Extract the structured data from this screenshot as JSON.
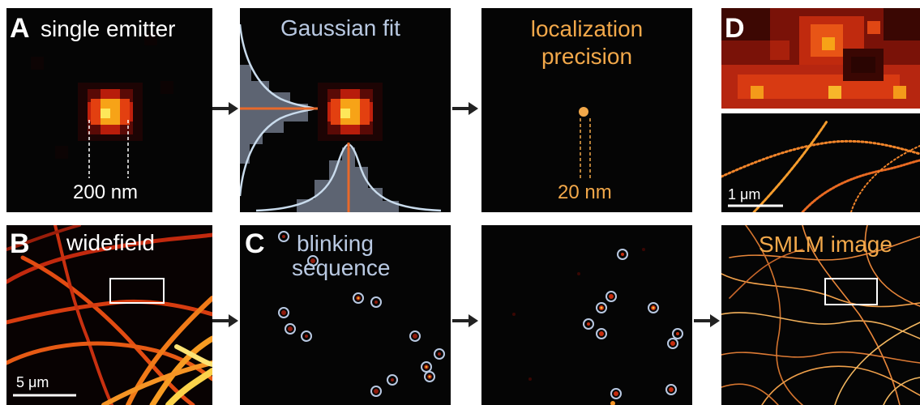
{
  "colors": {
    "panel_bg": "#050505",
    "accent_orange": "#e8692b",
    "accent_blue": "#b9c9e2",
    "label_orange": "#f2a84a",
    "arrow": "#222222"
  },
  "panel_a": {
    "letter": "A",
    "title": "single emitter",
    "measure": "200 nm"
  },
  "panel_fit": {
    "title": "Gaussian fit"
  },
  "panel_precision": {
    "title_line1": "localization",
    "title_line2": "precision",
    "measure": "20 nm"
  },
  "panel_d": {
    "letter": "D",
    "scalebar": "1 μm"
  },
  "panel_b": {
    "letter": "B",
    "title": "widefield",
    "scalebar": "5 μm"
  },
  "panel_c": {
    "letter": "C",
    "title_line1": "blinking",
    "title_line2": "sequence"
  },
  "panel_smlm": {
    "title": "SMLM image"
  }
}
